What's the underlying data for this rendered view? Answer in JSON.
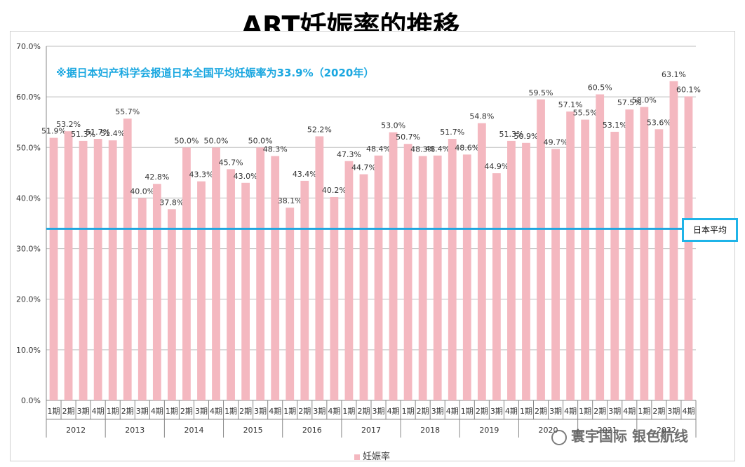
{
  "title": "ART妊娠率的推移",
  "note": "※据日本妇产科学会报道日本全国平均妊娠率为33.9%（2020年）",
  "average_label": "日本平均",
  "watermark": "寰宇国际 银色航线",
  "colors": {
    "bar": "#f4b8c0",
    "average_line": "#1fa6e0",
    "note": "#1aa7e0"
  },
  "chart_data": {
    "type": "bar",
    "y_tick_labels": [
      "0.0%",
      "10.0%",
      "20.0%",
      "30.0%",
      "40.0%",
      "50.0%",
      "60.0%",
      "70.0%"
    ],
    "ylim": [
      0,
      70
    ],
    "grid": true,
    "legend_position": "bottom",
    "series": [
      {
        "name": "妊娠率",
        "values": [
          51.9,
          53.2,
          51.3,
          51.7,
          51.4,
          55.7,
          40.0,
          42.8,
          37.8,
          50.0,
          43.3,
          50.0,
          45.7,
          43.0,
          50.0,
          48.3,
          38.1,
          43.4,
          52.2,
          40.2,
          47.3,
          44.7,
          48.4,
          53.0,
          50.7,
          48.3,
          48.4,
          51.7,
          48.6,
          54.8,
          44.9,
          51.3,
          50.9,
          59.5,
          49.7,
          57.1,
          55.5,
          60.5,
          53.1,
          57.5,
          58.0,
          53.6,
          63.1,
          60.1
        ]
      }
    ],
    "value_labels": [
      "51.9%",
      "53.2%",
      "51.3%",
      "51.7%",
      "51.4%",
      "55.7%",
      "40.0%",
      "42.8%",
      "37.8%",
      "50.0%",
      "43.3%",
      "50.0%",
      "45.7%",
      "43.0%",
      "50.0%",
      "48.3%",
      "38.1%",
      "43.4%",
      "52.2%",
      "40.2%",
      "47.3%",
      "44.7%",
      "48.4%",
      "53.0%",
      "50.7%",
      "48.3%",
      "48.4%",
      "51.7%",
      "48.6%",
      "54.8%",
      "44.9%",
      "51.3%",
      "50.9%",
      "59.5%",
      "49.7%",
      "57.1%",
      "55.5%",
      "60.5%",
      "53.1%",
      "57.5%",
      "58.0%",
      "53.6%",
      "63.1%",
      "60.1%"
    ],
    "quarter_labels": [
      "1期",
      "2期",
      "3期",
      "4期"
    ],
    "years": [
      "2012",
      "2013",
      "2014",
      "2015",
      "2016",
      "2017",
      "2018",
      "2019",
      "2020",
      "2021",
      "2022"
    ],
    "average_value": 33.9
  }
}
